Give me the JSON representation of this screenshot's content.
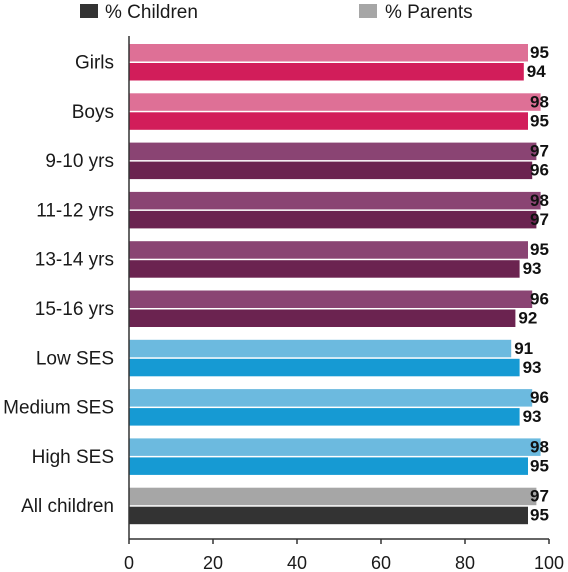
{
  "chart_data": {
    "type": "bar",
    "orientation": "horizontal",
    "legend": {
      "placement": "top",
      "items": [
        {
          "label": "% Children",
          "color": "#333333"
        },
        {
          "label": "% Parents",
          "color": "#a6a6a6"
        }
      ]
    },
    "categories": [
      "Girls",
      "Boys",
      "9-10 yrs",
      "11-12 yrs",
      "13-14 yrs",
      "15-16 yrs",
      "Low  SES",
      "Medium SES",
      "High SES",
      "All children"
    ],
    "series": [
      {
        "name": "% Parents",
        "values": [
          95,
          98,
          97,
          98,
          95,
          96,
          91,
          96,
          98,
          97
        ]
      },
      {
        "name": "% Children",
        "values": [
          94,
          95,
          96,
          97,
          93,
          92,
          93,
          93,
          95,
          95
        ]
      }
    ],
    "bar_colors": [
      {
        "parents": "#de7096",
        "children": "#d21d5a"
      },
      {
        "parents": "#de7096",
        "children": "#d21d5a"
      },
      {
        "parents": "#8a4473",
        "children": "#6b2350"
      },
      {
        "parents": "#8a4473",
        "children": "#6b2350"
      },
      {
        "parents": "#8a4473",
        "children": "#6b2350"
      },
      {
        "parents": "#8a4473",
        "children": "#6b2350"
      },
      {
        "parents": "#6cbadf",
        "children": "#169ad3"
      },
      {
        "parents": "#6cbadf",
        "children": "#169ad3"
      },
      {
        "parents": "#6cbadf",
        "children": "#169ad3"
      },
      {
        "parents": "#a6a6a6",
        "children": "#333333"
      }
    ],
    "xlim": [
      0,
      100
    ],
    "xticks": [
      0,
      20,
      40,
      60,
      80,
      100
    ],
    "grid": false,
    "title": "",
    "xlabel": "",
    "ylabel": ""
  }
}
